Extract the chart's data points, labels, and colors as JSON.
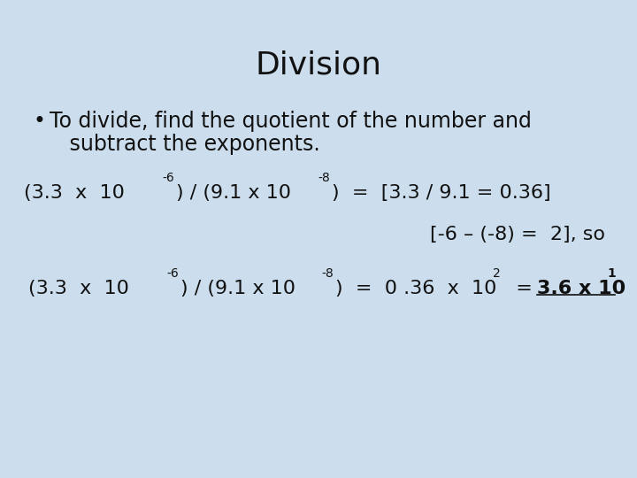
{
  "title": "Division",
  "title_fontsize": 26,
  "bg_color": "#ccdded",
  "text_color": "#111111",
  "figsize": [
    7.2,
    5.4
  ],
  "dpi": 100,
  "bullet_text_line1": "To divide, find the quotient of the number and",
  "bullet_text_line2": "   subtract the exponents.",
  "eq1_parts": {
    "base": "(3.3  x  10",
    "sup1": "-6",
    "mid": ") / (9.1 x 10",
    "sup2": "-8",
    "end": ")  =  [3.3 / 9.1 = 0.36]"
  },
  "eq2": "[-6 – (-8) =  2], so",
  "eq3_parts": {
    "base": "(3.3  x  10",
    "sup1": "-6",
    "mid": ") / (9.1 x 10",
    "sup2": "-8",
    "mid2": ")  =  0 .36  x  10",
    "sup3": "2",
    "eq": "  =  ",
    "bold": "3.6 x 10",
    "sup4": "1"
  },
  "main_fs": 16,
  "sup_fs": 10,
  "bullet_fs": 17
}
